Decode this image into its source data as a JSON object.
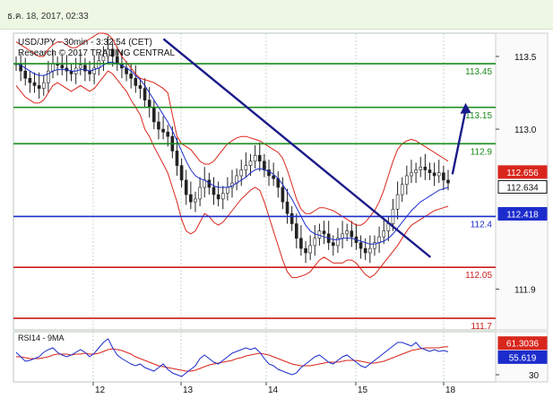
{
  "header": {
    "timestamp": "ธ.ค. 18, 2017, 02:33"
  },
  "chart_data": {
    "type": "candlestick",
    "main_panel": {
      "title": "USD/JPY - 30min - 3:32:54 (CET)",
      "subtitle": "Research © 2017 TRADING CENTRAL",
      "ylim": [
        111.62,
        113.66
      ],
      "y_ticks": [
        "113.5",
        "113.0",
        "111.9"
      ],
      "y_tick_values": [
        113.5,
        113.0,
        111.9
      ],
      "x_ticks": [
        "12",
        "13",
        "14",
        "15",
        "18"
      ],
      "levels": [
        {
          "label": "113.45",
          "value": 113.45,
          "color": "#1a8a1a"
        },
        {
          "label": "113.15",
          "value": 113.15,
          "color": "#1a8a1a"
        },
        {
          "label": "112.9",
          "value": 112.9,
          "color": "#1a8a1a"
        },
        {
          "label": "112.4",
          "value": 112.4,
          "color": "#1c2ccc"
        },
        {
          "label": "112.05",
          "value": 112.05,
          "color": "#cc1c1c"
        },
        {
          "label": "111.7",
          "value": 111.7,
          "color": "#cc1c1c"
        }
      ],
      "price_tags": [
        {
          "label": "112.656",
          "value": 112.656,
          "color": "#d9261c"
        },
        {
          "label": "112.634",
          "value": 112.634,
          "color": "#1a1a1a"
        },
        {
          "label": "112.418",
          "value": 112.418,
          "color": "#1c2ccc"
        }
      ],
      "close": [
        113.45,
        113.4,
        113.35,
        113.32,
        113.3,
        113.28,
        113.32,
        113.4,
        113.45,
        113.44,
        113.42,
        113.4,
        113.38,
        113.42,
        113.44,
        113.4,
        113.38,
        113.42,
        113.47,
        113.5,
        113.55,
        113.5,
        113.45,
        113.42,
        113.38,
        113.35,
        113.3,
        113.28,
        113.2,
        113.15,
        113.05,
        113.0,
        112.98,
        112.95,
        112.85,
        112.75,
        112.65,
        112.55,
        112.5,
        112.52,
        112.6,
        112.65,
        112.6,
        112.55,
        112.52,
        112.56,
        112.6,
        112.63,
        112.68,
        112.72,
        112.75,
        112.78,
        112.82,
        112.78,
        112.72,
        112.68,
        112.66,
        112.6,
        112.5,
        112.42,
        112.35,
        112.25,
        112.18,
        112.15,
        112.2,
        112.25,
        112.3,
        112.28,
        112.22,
        112.2,
        112.25,
        112.28,
        112.3,
        112.26,
        112.22,
        112.18,
        112.15,
        112.18,
        112.22,
        112.26,
        112.3,
        112.35,
        112.45,
        112.55,
        112.62,
        112.68,
        112.7,
        112.72,
        112.74,
        112.72,
        112.7,
        112.68,
        112.7,
        112.65,
        112.63
      ],
      "upper_band": [
        113.6,
        113.58,
        113.56,
        113.54,
        113.52,
        113.5,
        113.5,
        113.55,
        113.58,
        113.6,
        113.6,
        113.58,
        113.56,
        113.56,
        113.58,
        113.6,
        113.62,
        113.64,
        113.66,
        113.66,
        113.65,
        113.62,
        113.56,
        113.5,
        113.46,
        113.42,
        113.38,
        113.35,
        113.34,
        113.33,
        113.32,
        113.3,
        113.28,
        113.25,
        113.1,
        112.95,
        112.9,
        112.88,
        112.86,
        112.82,
        112.78,
        112.76,
        112.76,
        112.78,
        112.82,
        112.86,
        112.9,
        112.92,
        112.94,
        112.95,
        112.95,
        112.94,
        112.93,
        112.92,
        112.9,
        112.88,
        112.86,
        112.84,
        112.8,
        112.72,
        112.62,
        112.52,
        112.45,
        112.42,
        112.42,
        112.44,
        112.46,
        112.46,
        112.45,
        112.44,
        112.42,
        112.4,
        112.38,
        112.36,
        112.34,
        112.34,
        112.36,
        112.4,
        112.44,
        112.5,
        112.58,
        112.68,
        112.78,
        112.86,
        112.9,
        112.92,
        112.93,
        112.92,
        112.9,
        112.88,
        112.86,
        112.84,
        112.82,
        112.8,
        112.78
      ],
      "lower_band": [
        113.3,
        113.26,
        113.22,
        113.2,
        113.18,
        113.18,
        113.2,
        113.25,
        113.3,
        113.32,
        113.3,
        113.28,
        113.26,
        113.28,
        113.3,
        113.28,
        113.26,
        113.28,
        113.32,
        113.36,
        113.4,
        113.38,
        113.34,
        113.3,
        113.26,
        113.2,
        113.15,
        113.1,
        113.0,
        112.95,
        112.88,
        112.82,
        112.76,
        112.7,
        112.6,
        112.5,
        112.38,
        112.3,
        112.28,
        112.3,
        112.36,
        112.42,
        112.4,
        112.36,
        112.34,
        112.36,
        112.4,
        112.44,
        112.48,
        112.52,
        112.55,
        112.58,
        112.6,
        112.58,
        112.5,
        112.4,
        112.3,
        112.2,
        112.1,
        112.02,
        111.98,
        111.98,
        111.99,
        112.0,
        112.02,
        112.06,
        112.1,
        112.12,
        112.1,
        112.08,
        112.08,
        112.08,
        112.1,
        112.1,
        112.08,
        112.04,
        112.0,
        111.98,
        112.0,
        112.04,
        112.08,
        112.12,
        112.16,
        112.2,
        112.25,
        112.3,
        112.34,
        112.36,
        112.38,
        112.4,
        112.42,
        112.44,
        112.45,
        112.46,
        112.47
      ],
      "moving_average": [
        113.45,
        113.44,
        113.42,
        113.4,
        113.38,
        113.37,
        113.37,
        113.38,
        113.4,
        113.41,
        113.41,
        113.41,
        113.4,
        113.4,
        113.41,
        113.41,
        113.4,
        113.41,
        113.42,
        113.44,
        113.46,
        113.46,
        113.45,
        113.44,
        113.42,
        113.4,
        113.37,
        113.34,
        113.3,
        113.25,
        113.2,
        113.15,
        113.1,
        113.05,
        112.99,
        112.92,
        112.85,
        112.78,
        112.72,
        112.68,
        112.66,
        112.65,
        112.63,
        112.61,
        112.6,
        112.6,
        112.6,
        112.61,
        112.63,
        112.65,
        112.67,
        112.7,
        112.72,
        112.73,
        112.72,
        112.71,
        112.69,
        112.66,
        112.62,
        112.57,
        112.52,
        112.46,
        112.4,
        112.34,
        112.3,
        112.28,
        112.27,
        112.26,
        112.25,
        112.24,
        112.24,
        112.25,
        112.25,
        112.25,
        112.24,
        112.23,
        112.22,
        112.21,
        112.21,
        112.22,
        112.23,
        112.25,
        112.28,
        112.32,
        112.36,
        112.4,
        112.44,
        112.47,
        112.5,
        112.52,
        112.54,
        112.56,
        112.58,
        112.59,
        112.6
      ],
      "trendline": {
        "from": [
          "12.8",
          113.62
        ],
        "to": [
          "15.85",
          112.12
        ]
      },
      "arrow": {
        "from": [
          "18.1",
          112.69
        ],
        "to": [
          "18.25",
          113.18
        ]
      }
    },
    "rsi_panel": {
      "label": "RSI14 - 9MA",
      "ylim": [
        22,
        78
      ],
      "y_ticks": [
        "30"
      ],
      "y_tick_values": [
        30
      ],
      "tags": [
        {
          "label": "61.3036",
          "value": 61.3036,
          "color": "#d9261c"
        },
        {
          "label": "55.619",
          "value": 55.619,
          "color": "#1c2ccc"
        }
      ],
      "rsi": [
        55,
        50,
        45,
        46,
        48,
        50,
        55,
        58,
        60,
        55,
        52,
        50,
        52,
        55,
        58,
        55,
        50,
        54,
        60,
        66,
        70,
        60,
        52,
        48,
        45,
        42,
        40,
        42,
        38,
        36,
        34,
        38,
        42,
        36,
        32,
        30,
        28,
        32,
        36,
        40,
        48,
        52,
        48,
        44,
        42,
        46,
        50,
        54,
        56,
        58,
        60,
        58,
        60,
        55,
        48,
        42,
        40,
        36,
        34,
        32,
        30,
        32,
        38,
        42,
        46,
        50,
        52,
        48,
        44,
        42,
        46,
        50,
        52,
        48,
        44,
        40,
        38,
        42,
        46,
        50,
        54,
        58,
        62,
        66,
        66,
        64,
        62,
        66,
        60,
        58,
        56,
        58,
        56,
        57,
        55.6
      ],
      "rsi_ma": [
        50,
        50,
        49,
        48,
        48,
        48,
        49,
        50,
        52,
        53,
        53,
        53,
        52,
        53,
        53,
        54,
        53,
        53,
        54,
        56,
        58,
        59,
        58,
        57,
        55,
        53,
        50,
        48,
        46,
        44,
        42,
        40,
        39,
        38,
        37,
        36,
        35,
        34,
        34,
        35,
        37,
        39,
        41,
        42,
        43,
        44,
        45,
        46,
        48,
        49,
        51,
        52,
        53,
        54,
        53,
        52,
        50,
        48,
        46,
        44,
        42,
        41,
        40,
        40,
        40,
        41,
        42,
        43,
        44,
        44,
        44,
        45,
        46,
        46,
        46,
        45,
        44,
        43,
        43,
        44,
        45,
        47,
        49,
        51,
        53,
        55,
        57,
        58,
        59,
        60,
        60,
        60,
        60,
        61,
        61.3
      ]
    }
  }
}
